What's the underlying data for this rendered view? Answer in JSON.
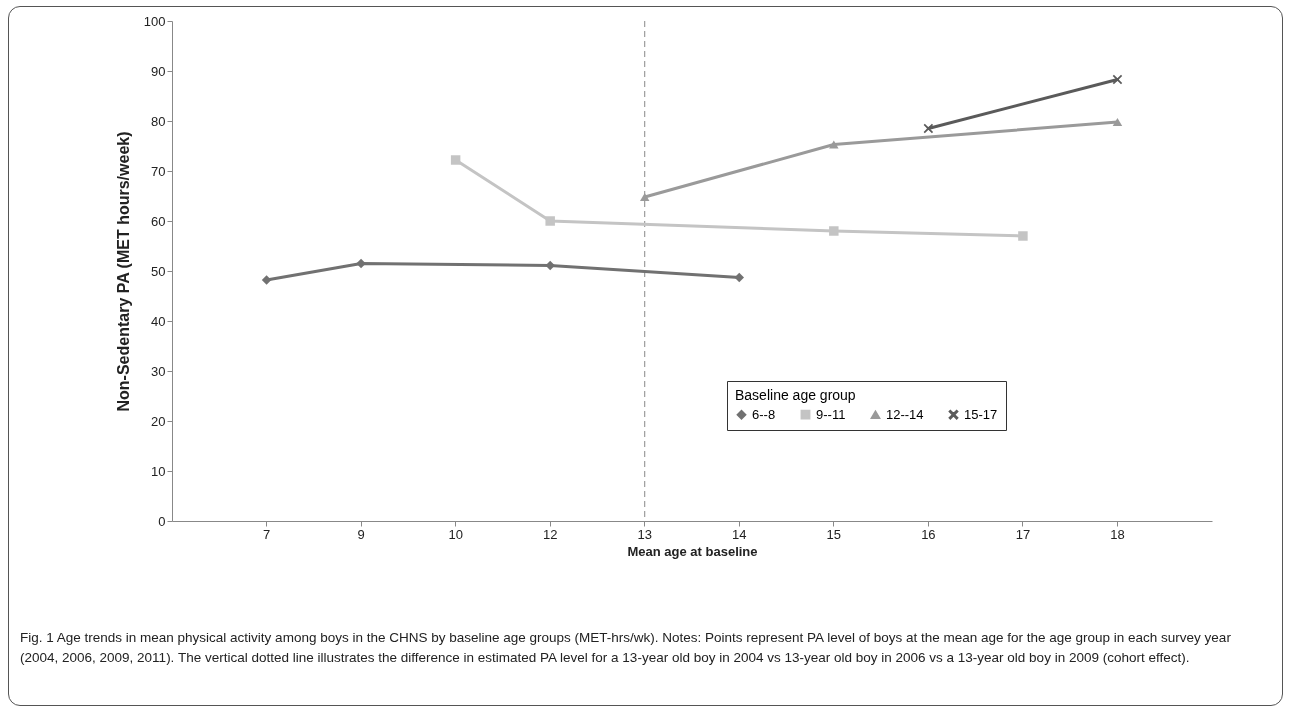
{
  "chart_data": {
    "type": "line",
    "xlabel": "Mean age at baseline",
    "ylabel": "Non-Sedentary PA (MET hours/week)",
    "legend_title": "Baseline age group",
    "legend": "bottom right",
    "grid": false,
    "line_style": "solid",
    "categories": [
      "7",
      "9",
      "10",
      "12",
      "13",
      "14",
      "15",
      "16",
      "17",
      "18"
    ],
    "ylim": [
      0,
      100
    ],
    "yticks": [
      0,
      10,
      20,
      30,
      40,
      50,
      60,
      70,
      80,
      90,
      100
    ],
    "series": [
      {
        "name": "6--8",
        "color": "#717171",
        "marker": "diamond",
        "x": [
          "7",
          "9",
          "12",
          "14"
        ],
        "values": [
          48.2,
          51.5,
          51.1,
          48.7
        ]
      },
      {
        "name": "9--11",
        "color": "#c4c4c4",
        "marker": "square",
        "x": [
          "10",
          "12",
          "15",
          "17"
        ],
        "values": [
          72.2,
          60,
          58,
          57
        ]
      },
      {
        "name": "12--14",
        "color": "#9a9a9a",
        "marker": "triangle",
        "x": [
          "13",
          "15",
          "18"
        ],
        "values": [
          64.8,
          75.3,
          79.8
        ]
      },
      {
        "name": "15-17",
        "color": "#5a5a5a",
        "marker": "cross",
        "x": [
          "16",
          "18"
        ],
        "values": [
          78.5,
          88.3
        ]
      }
    ],
    "ref_lines": [
      {
        "axis": "x",
        "value": "13",
        "color": "#888888",
        "line_style": "dashed"
      }
    ],
    "annotations": [
      "Fig. 1 Age trends in mean physical activity among boys in the CHNS by baseline age groups (MET-hrs/wk). Notes: Points represent PA level of boys at the mean age for the age group in each survey year (2004, 2006, 2009, 2011). The vertical dotted line illustrates the difference in estimated PA level for a 13-year old boy in 2004 vs 13-year old boy in 2006 vs a 13-year old boy in 2009 (cohort effect)."
    ]
  }
}
